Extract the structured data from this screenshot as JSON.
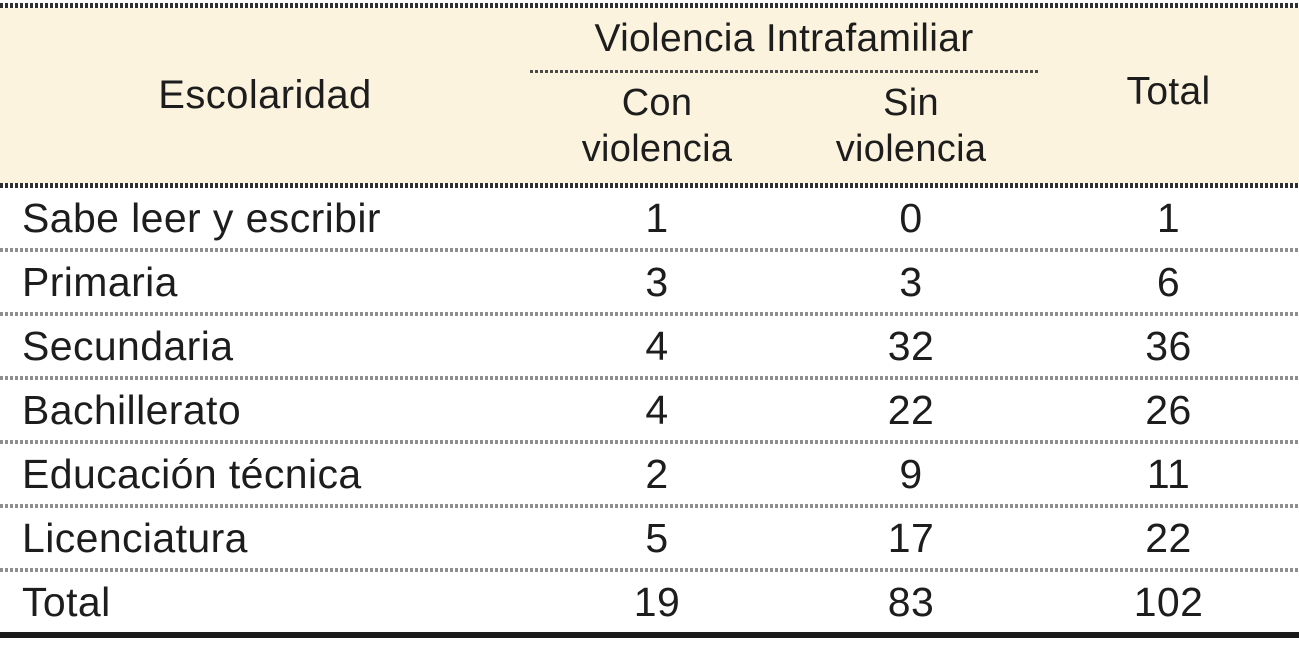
{
  "colors": {
    "header_bg": "#FBF3DE",
    "text": "#1D1D1D",
    "border_dark": "#303030",
    "divider_gray": "#8E8E8E",
    "group_underline": "#4A4A4A",
    "bottom_border": "#1A1A1A",
    "page_bg": "#FFFFFF"
  },
  "table": {
    "header": {
      "escolaridad": "Escolaridad",
      "group_title": "Violencia Intrafamiliar",
      "sub_con": "Con\nviolencia",
      "sub_sin": "Sin\nviolencia",
      "total": "Total"
    },
    "rows": [
      {
        "label": "Sabe leer y escribir",
        "con": "1",
        "sin": "0",
        "total": "1"
      },
      {
        "label": "Primaria",
        "con": "3",
        "sin": "3",
        "total": "6"
      },
      {
        "label": "Secundaria",
        "con": "4",
        "sin": "32",
        "total": "36"
      },
      {
        "label": "Bachillerato",
        "con": "4",
        "sin": "22",
        "total": "26"
      },
      {
        "label": "Educación técnica",
        "con": "2",
        "sin": "9",
        "total": "11"
      },
      {
        "label": "Licenciatura",
        "con": "5",
        "sin": "17",
        "total": "22"
      },
      {
        "label": "Total",
        "con": "19",
        "sin": "83",
        "total": "102"
      }
    ]
  }
}
